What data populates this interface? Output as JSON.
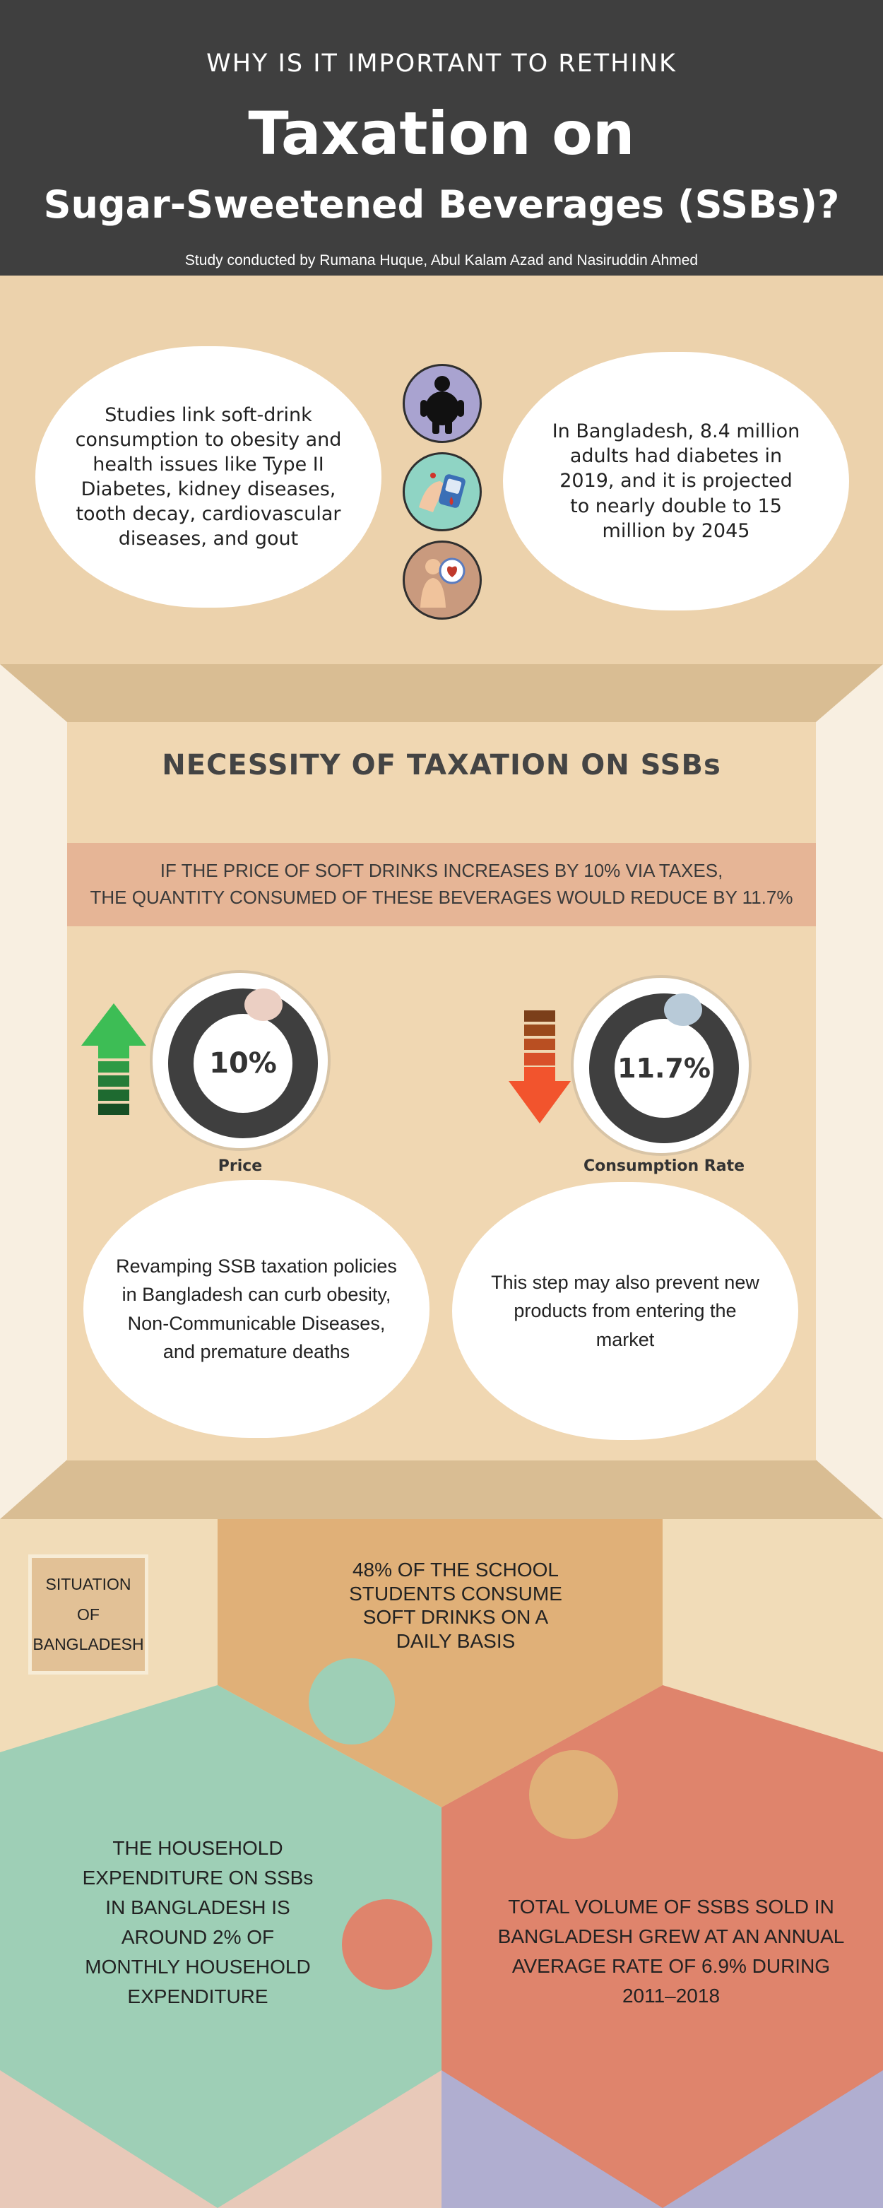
{
  "header": {
    "pretitle": "WHY IS IT IMPORTANT TO RETHINK",
    "title_line1": "Taxation on",
    "title_line2": "Sugar-Sweetened Beverages (SSBs)?",
    "credit": "Study conducted by Rumana Huque, Abul Kalam Azad and Nasiruddin Ahmed"
  },
  "intro": {
    "left_text": "Studies link soft-drink consumption to obesity and health issues like Type II Diabetes, kidney diseases, tooth decay, cardiovascular diseases, and gout",
    "right_text": "In Bangladesh, 8.4 million adults had diabetes in 2019, and it is projected to nearly double to 15 million by 2045",
    "icons": [
      "obesity-icon",
      "diabetes-test-icon",
      "heart-disease-icon"
    ]
  },
  "necessity": {
    "heading": "NECESSITY OF TAXATION ON SSBs",
    "banner_line1": "IF THE PRICE OF SOFT DRINKS INCREASES BY 10% VIA TAXES,",
    "banner_line2": "THE QUANTITY CONSUMED OF THESE BEVERAGES WOULD REDUCE BY 11.7%",
    "price": {
      "value": "10%",
      "label": "Price",
      "arrow": "arrow-up-icon"
    },
    "consumption": {
      "value": "11.7%",
      "label": "Consumption Rate",
      "arrow": "arrow-down-icon"
    },
    "left_note": "Revamping SSB taxation policies in Bangladesh can curb obesity, Non-Communicable Diseases, and premature deaths",
    "right_note": "This step may also prevent new products from entering the market"
  },
  "situation": {
    "label_line1": "SITUATION",
    "label_line2": "OF",
    "label_line3": "BANGLADESH",
    "school_text": "48% OF THE SCHOOL STUDENTS CONSUME SOFT DRINKS ON A DAILY BASIS",
    "household_text": "THE HOUSEHOLD EXPENDITURE ON SSBs IN BANGLADESH IS AROUND 2% OF MONTHLY HOUSEHOLD EXPENDITURE",
    "volume_text": "TOTAL VOLUME OF SSBS SOLD IN BANGLADESH GREW AT AN ANNUAL AVERAGE RATE OF 6.9% DURING 2011–2018"
  },
  "colors": {
    "header_bg": "#3f3f3f",
    "beige": "#ecd2ac",
    "salmon_banner": "#e6b596",
    "mint": "#9ecfb6",
    "coral": "#df846c",
    "orange_tan": "#e0b078",
    "lavender": "#b0aed0",
    "arrow_green": "#3dbd55",
    "arrow_red": "#f2542d"
  }
}
